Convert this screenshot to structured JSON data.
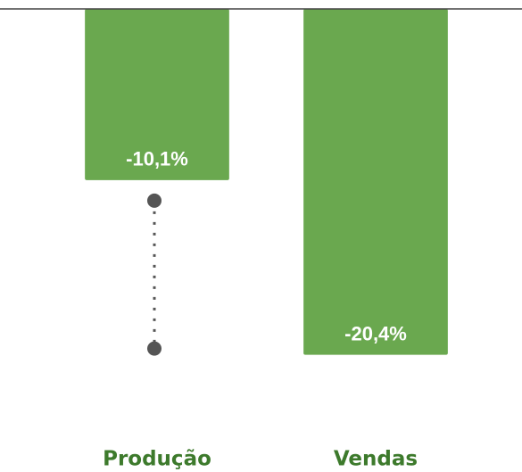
{
  "chart_data": {
    "type": "bar",
    "categories": [
      "Produção",
      "Vendas"
    ],
    "values": [
      -10.1,
      -20.4
    ],
    "value_labels": [
      "-10,1%",
      "-20,4%"
    ],
    "color": "#6aa84f",
    "ylim": [
      -27,
      0
    ]
  }
}
